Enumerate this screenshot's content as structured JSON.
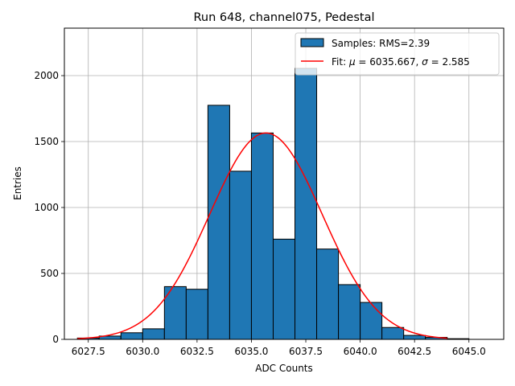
{
  "chart_data": {
    "type": "bar",
    "title": "Run 648, channel075, Pedestal",
    "xlabel": "ADC Counts",
    "ylabel": "Entries",
    "xlim": [
      6026.4,
      6046.6
    ],
    "ylim": [
      0,
      2360
    ],
    "xticks": [
      6027.5,
      6030.0,
      6032.5,
      6035.0,
      6037.5,
      6040.0,
      6042.5,
      6045.0
    ],
    "xtick_labels": [
      "6027.5",
      "6030.0",
      "6032.5",
      "6035.0",
      "6037.5",
      "6040.0",
      "6042.5",
      "6045.0"
    ],
    "yticks": [
      0,
      500,
      1000,
      1500,
      2000
    ],
    "ytick_labels": [
      "0",
      "500",
      "1000",
      "1500",
      "2000"
    ],
    "grid": true,
    "legend_position": "top-right",
    "histogram": {
      "name": "Samples: RMS=2.39",
      "color": "#1f77b4",
      "edge_color": "#000000",
      "bin_edges": [
        6027.0,
        6028.0,
        6029.0,
        6030.0,
        6031.0,
        6032.0,
        6033.0,
        6034.0,
        6035.0,
        6036.0,
        6037.0,
        6038.0,
        6039.0,
        6040.0,
        6041.0,
        6042.0,
        6043.0,
        6044.0,
        6045.0,
        6046.0
      ],
      "counts": [
        10,
        25,
        50,
        80,
        400,
        380,
        1775,
        1275,
        1565,
        760,
        2055,
        685,
        415,
        280,
        90,
        30,
        15,
        5,
        0
      ]
    },
    "fit": {
      "name": "Fit: μ = 6035.667, σ = 2.585",
      "label_prefix": "Fit: ",
      "label_mu": "μ",
      "label_mid": " = 6035.667, ",
      "label_sigma": "σ",
      "label_suffix": " = 2.585",
      "color": "#ff0000",
      "mu": 6035.667,
      "sigma": 2.585,
      "amplitude": 1565,
      "x_range": [
        6027.0,
        6044.0
      ]
    }
  }
}
